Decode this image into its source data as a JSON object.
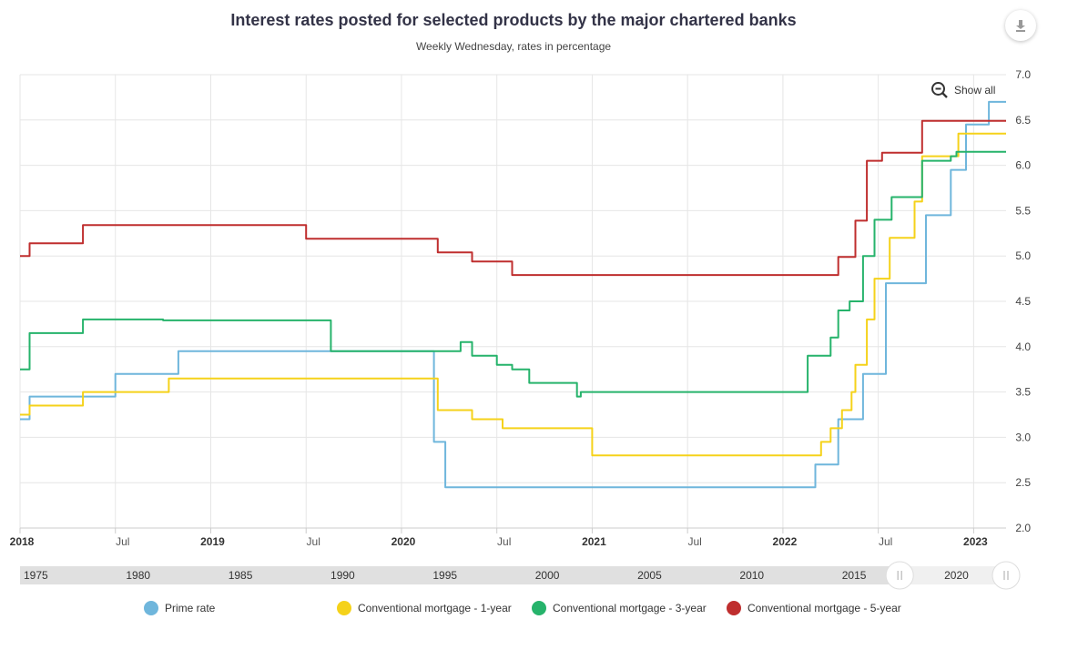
{
  "title": "Interest rates posted for selected products by the major chartered banks",
  "subtitle": "Weekly Wednesday, rates in percentage",
  "show_all_label": "Show all",
  "colors": {
    "prime": "#6fb6dc",
    "mortgage_1y": "#f5d21a",
    "mortgage_3y": "#26b36b",
    "mortgage_5y": "#bf2e2e",
    "grid": "#e6e6e6",
    "navigator_bg": "#e0e0e0",
    "navigator_selected": "#f0f0f0"
  },
  "icons": {
    "download": "download-icon",
    "zoom_out": "zoom-out-icon"
  },
  "x_axis": {
    "ticks": [
      {
        "label": "2018",
        "t": 2018.0,
        "bold": true
      },
      {
        "label": "Jul",
        "t": 2018.5,
        "bold": false
      },
      {
        "label": "2019",
        "t": 2019.0,
        "bold": true
      },
      {
        "label": "Jul",
        "t": 2019.5,
        "bold": false
      },
      {
        "label": "2020",
        "t": 2020.0,
        "bold": true
      },
      {
        "label": "Jul",
        "t": 2020.5,
        "bold": false
      },
      {
        "label": "2021",
        "t": 2021.0,
        "bold": true
      },
      {
        "label": "Jul",
        "t": 2021.5,
        "bold": false
      },
      {
        "label": "2022",
        "t": 2022.0,
        "bold": true
      },
      {
        "label": "Jul",
        "t": 2022.5,
        "bold": false
      },
      {
        "label": "2023",
        "t": 2023.0,
        "bold": true
      }
    ]
  },
  "y_axis": {
    "ticks": [
      "2.0",
      "2.5",
      "3.0",
      "3.5",
      "4.0",
      "4.5",
      "5.0",
      "5.5",
      "6.0",
      "6.5",
      "7.0"
    ]
  },
  "navigator": {
    "labels": [
      {
        "label": "1975",
        "t": 1975
      },
      {
        "label": "1980",
        "t": 1980
      },
      {
        "label": "1985",
        "t": 1985
      },
      {
        "label": "1990",
        "t": 1990
      },
      {
        "label": "1995",
        "t": 1995
      },
      {
        "label": "2000",
        "t": 2000
      },
      {
        "label": "2005",
        "t": 2005
      },
      {
        "label": "2010",
        "t": 2010
      },
      {
        "label": "2015",
        "t": 2015
      },
      {
        "label": "2020",
        "t": 2020
      }
    ],
    "range": [
      1975,
      2023.2
    ],
    "selected": [
      2018.0,
      2023.2
    ]
  },
  "chart_data": {
    "type": "line",
    "title": "Interest rates posted for selected products by the major chartered banks",
    "subtitle": "Weekly Wednesday, rates in percentage",
    "xlabel": "",
    "ylabel": "",
    "xlim": [
      2018.0,
      2023.17
    ],
    "ylim": [
      2.0,
      7.0
    ],
    "grid": true,
    "legend_position": "bottom",
    "series": [
      {
        "name": "Prime rate",
        "color": "#6fb6dc",
        "points": [
          [
            2018.0,
            3.2
          ],
          [
            2018.05,
            3.45
          ],
          [
            2018.5,
            3.7
          ],
          [
            2018.83,
            3.95
          ],
          [
            2020.17,
            2.95
          ],
          [
            2020.23,
            2.45
          ],
          [
            2022.17,
            2.7
          ],
          [
            2022.29,
            3.2
          ],
          [
            2022.42,
            3.7
          ],
          [
            2022.54,
            4.7
          ],
          [
            2022.75,
            5.45
          ],
          [
            2022.88,
            5.95
          ],
          [
            2022.96,
            6.45
          ],
          [
            2023.08,
            6.7
          ],
          [
            2023.17,
            6.7
          ]
        ]
      },
      {
        "name": "Conventional mortgage - 1-year",
        "color": "#f5d21a",
        "points": [
          [
            2018.0,
            3.25
          ],
          [
            2018.05,
            3.35
          ],
          [
            2018.33,
            3.5
          ],
          [
            2018.78,
            3.65
          ],
          [
            2020.19,
            3.3
          ],
          [
            2020.37,
            3.2
          ],
          [
            2020.53,
            3.1
          ],
          [
            2021.0,
            2.8
          ],
          [
            2022.2,
            2.95
          ],
          [
            2022.25,
            3.1
          ],
          [
            2022.31,
            3.3
          ],
          [
            2022.36,
            3.5
          ],
          [
            2022.38,
            3.8
          ],
          [
            2022.44,
            4.3
          ],
          [
            2022.48,
            4.75
          ],
          [
            2022.56,
            5.2
          ],
          [
            2022.69,
            5.6
          ],
          [
            2022.73,
            6.1
          ],
          [
            2022.92,
            6.35
          ],
          [
            2023.17,
            6.35
          ]
        ]
      },
      {
        "name": "Conventional mortgage - 3-year",
        "color": "#26b36b",
        "points": [
          [
            2018.0,
            3.75
          ],
          [
            2018.05,
            4.15
          ],
          [
            2018.33,
            4.3
          ],
          [
            2018.75,
            4.29
          ],
          [
            2019.63,
            3.95
          ],
          [
            2020.31,
            4.05
          ],
          [
            2020.37,
            3.9
          ],
          [
            2020.5,
            3.8
          ],
          [
            2020.58,
            3.75
          ],
          [
            2020.67,
            3.6
          ],
          [
            2020.92,
            3.45
          ],
          [
            2020.94,
            3.5
          ],
          [
            2022.13,
            3.9
          ],
          [
            2022.25,
            4.1
          ],
          [
            2022.29,
            4.4
          ],
          [
            2022.35,
            4.5
          ],
          [
            2022.42,
            5.0
          ],
          [
            2022.48,
            5.4
          ],
          [
            2022.57,
            5.65
          ],
          [
            2022.73,
            6.05
          ],
          [
            2022.88,
            6.1
          ],
          [
            2022.91,
            6.15
          ],
          [
            2023.17,
            6.15
          ]
        ]
      },
      {
        "name": "Conventional mortgage - 5-year",
        "color": "#bf2e2e",
        "points": [
          [
            2018.0,
            5.0
          ],
          [
            2018.05,
            5.14
          ],
          [
            2018.33,
            5.34
          ],
          [
            2019.5,
            5.19
          ],
          [
            2020.19,
            5.04
          ],
          [
            2020.37,
            4.94
          ],
          [
            2020.58,
            4.79
          ],
          [
            2022.29,
            4.99
          ],
          [
            2022.38,
            5.39
          ],
          [
            2022.44,
            6.05
          ],
          [
            2022.52,
            6.14
          ],
          [
            2022.73,
            6.49
          ],
          [
            2023.17,
            6.49
          ]
        ]
      }
    ]
  }
}
